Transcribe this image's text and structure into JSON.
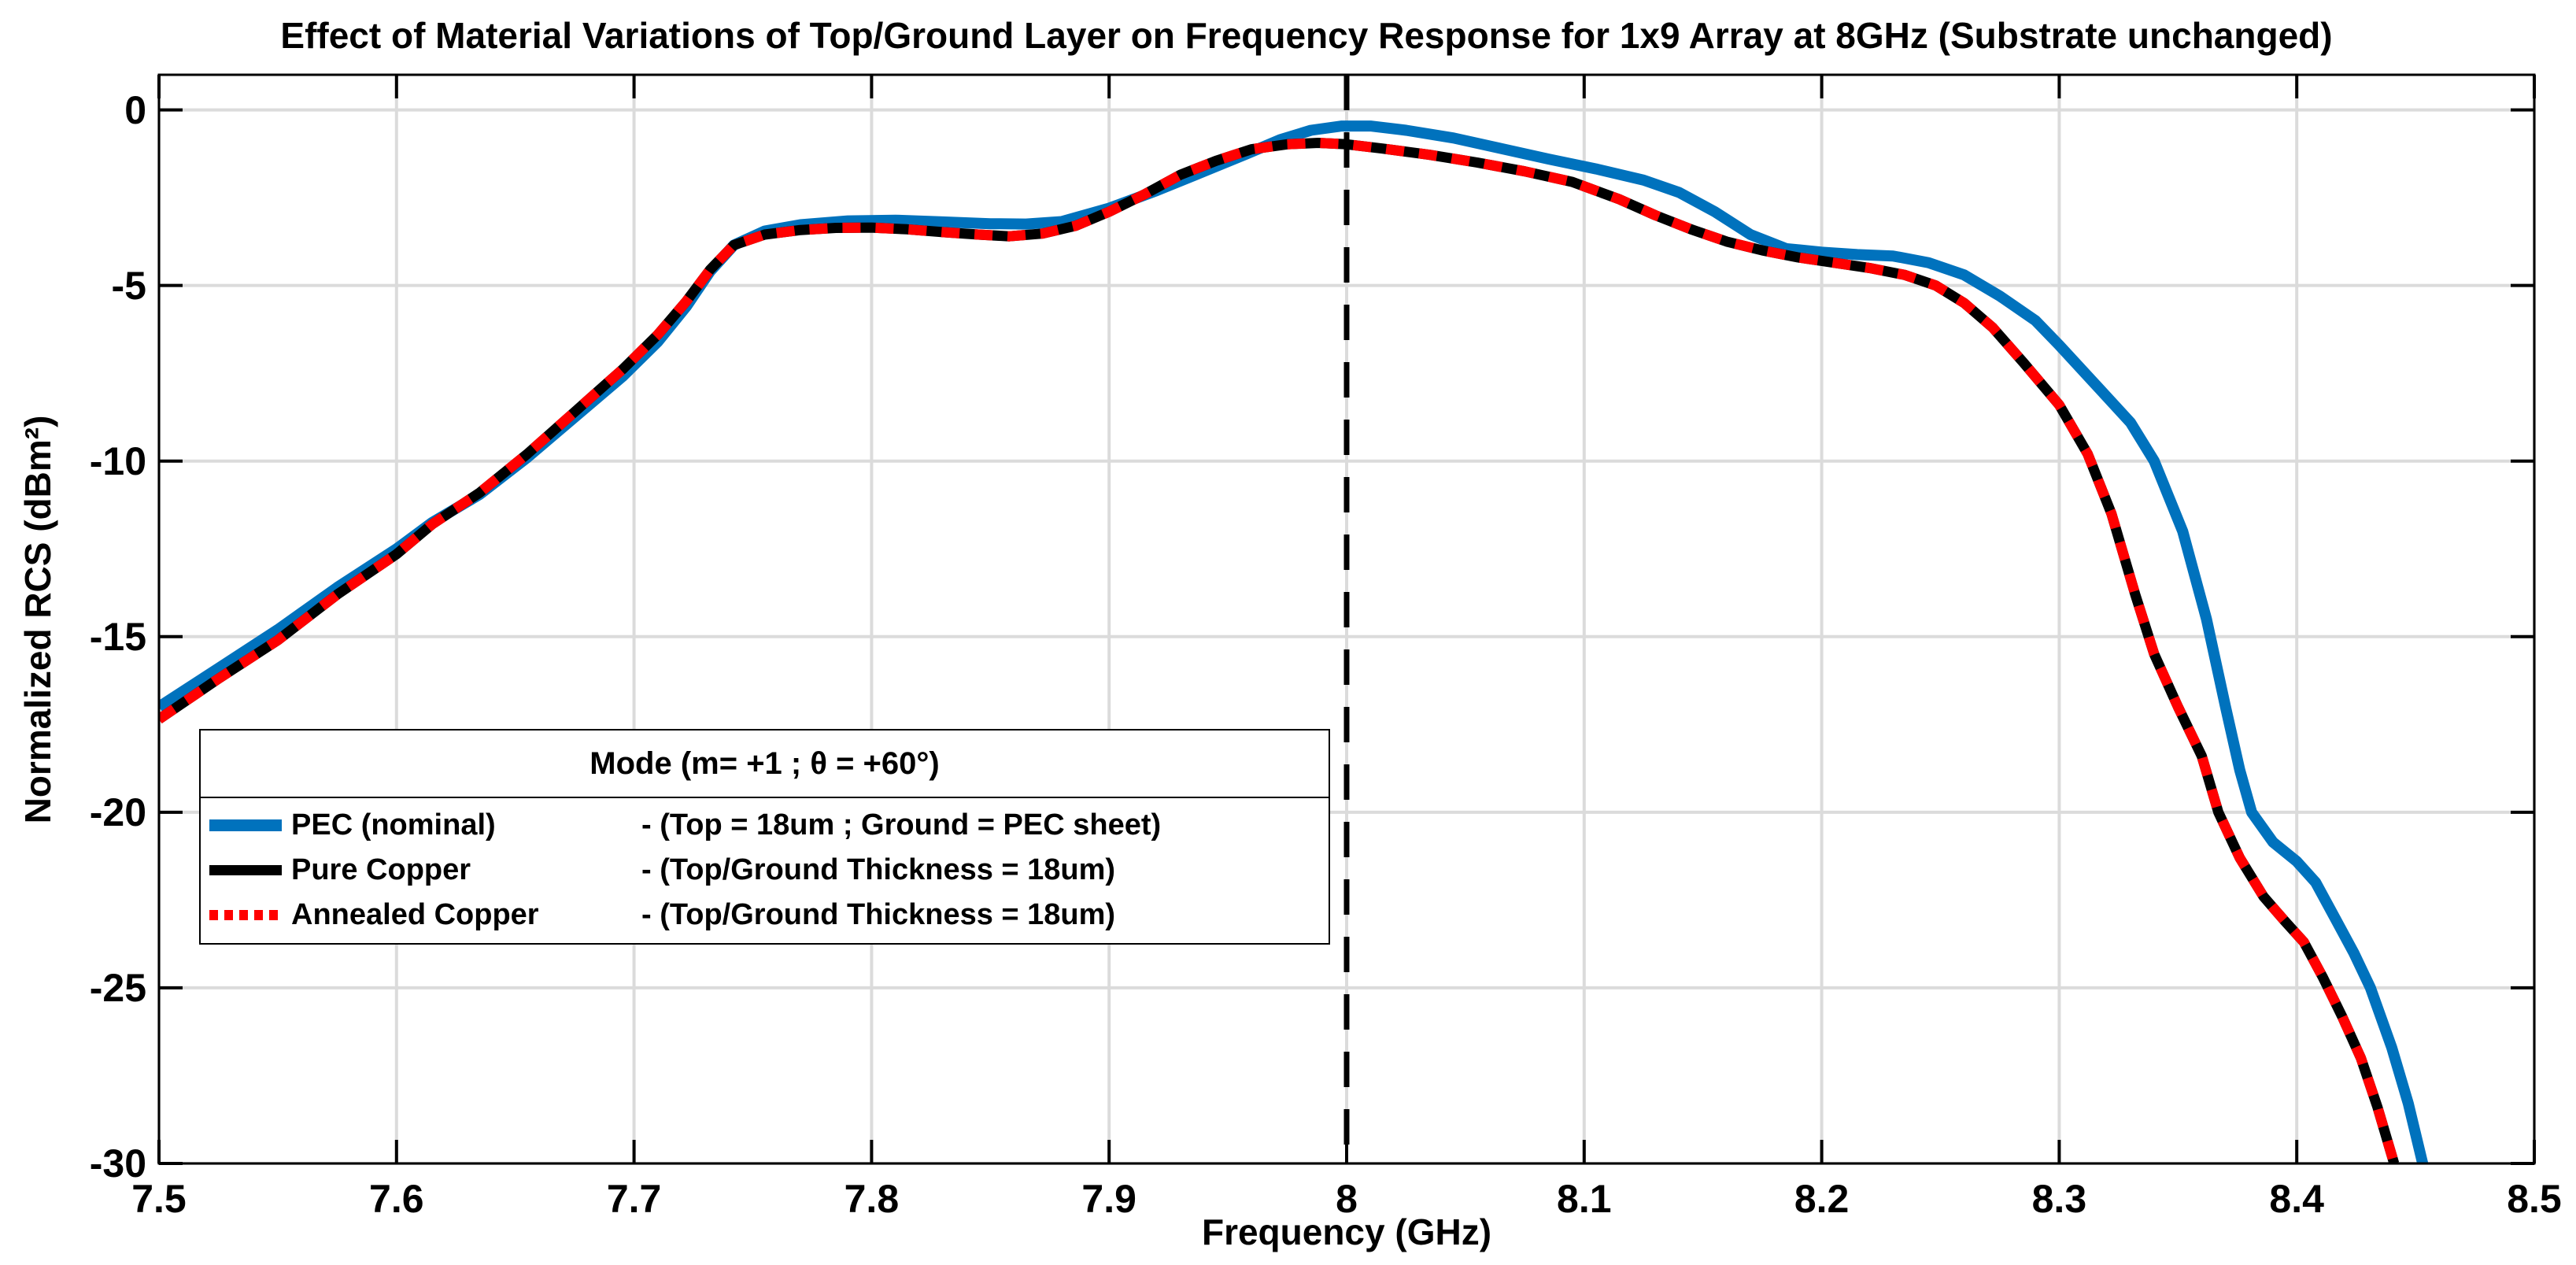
{
  "chart_data": {
    "type": "line",
    "title": "Effect of Material Variations of Top/Ground Layer on Frequency Response for 1x9 Array at 8GHz (Substrate unchanged)",
    "xlabel": "Frequency (GHz)",
    "ylabel": "Normalized RCS (dBm²)",
    "xlim": [
      7.5,
      8.5
    ],
    "ylim": [
      -30,
      1
    ],
    "grid": true,
    "x_ticks": [
      7.5,
      7.6,
      7.7,
      7.8,
      7.9,
      8,
      8.1,
      8.2,
      8.3,
      8.4,
      8.5
    ],
    "x_tick_labels": [
      "7.5",
      "7.6",
      "7.7",
      "7.8",
      "7.9",
      "8",
      "8.1",
      "8.2",
      "8.3",
      "8.4",
      "8.5"
    ],
    "y_ticks": [
      0,
      -5,
      -10,
      -15,
      -20,
      -25,
      -30
    ],
    "y_tick_labels": [
      "0",
      "-5",
      "-10",
      "-15",
      "-20",
      "-25",
      "-30"
    ],
    "marker_line": {
      "x": 8,
      "color": "#000000",
      "style": "dashed"
    },
    "colors": {
      "background": "#FFFFFF",
      "grid": "#DBDBDB",
      "axis": "#000000",
      "pec_blue": "#0072BD",
      "copper_black": "#000000",
      "annealed_red": "#FF0000"
    },
    "series": [
      {
        "name": "PEC (nominal)",
        "color": "#0072BD",
        "style": "solid",
        "width": 14,
        "points": [
          [
            7.5,
            -17.0
          ],
          [
            7.525,
            -15.9
          ],
          [
            7.55,
            -14.8
          ],
          [
            7.575,
            -13.6
          ],
          [
            7.6,
            -12.5
          ],
          [
            7.615,
            -11.75
          ],
          [
            7.635,
            -10.95
          ],
          [
            7.655,
            -9.9
          ],
          [
            7.675,
            -8.75
          ],
          [
            7.695,
            -7.6
          ],
          [
            7.71,
            -6.6
          ],
          [
            7.722,
            -5.6
          ],
          [
            7.732,
            -4.6
          ],
          [
            7.742,
            -3.85
          ],
          [
            7.755,
            -3.45
          ],
          [
            7.77,
            -3.27
          ],
          [
            7.79,
            -3.16
          ],
          [
            7.81,
            -3.14
          ],
          [
            7.83,
            -3.19
          ],
          [
            7.85,
            -3.24
          ],
          [
            7.865,
            -3.25
          ],
          [
            7.88,
            -3.18
          ],
          [
            7.9,
            -2.8
          ],
          [
            7.92,
            -2.3
          ],
          [
            7.94,
            -1.75
          ],
          [
            7.958,
            -1.25
          ],
          [
            7.972,
            -0.85
          ],
          [
            7.985,
            -0.58
          ],
          [
            7.998,
            -0.46
          ],
          [
            8.01,
            -0.46
          ],
          [
            8.025,
            -0.58
          ],
          [
            8.045,
            -0.8
          ],
          [
            8.065,
            -1.1
          ],
          [
            8.085,
            -1.4
          ],
          [
            8.105,
            -1.68
          ],
          [
            8.125,
            -2.0
          ],
          [
            8.14,
            -2.35
          ],
          [
            8.155,
            -2.9
          ],
          [
            8.17,
            -3.55
          ],
          [
            8.185,
            -3.95
          ],
          [
            8.2,
            -4.05
          ],
          [
            8.215,
            -4.12
          ],
          [
            8.23,
            -4.16
          ],
          [
            8.245,
            -4.35
          ],
          [
            8.26,
            -4.7
          ],
          [
            8.275,
            -5.3
          ],
          [
            8.29,
            -6.0
          ],
          [
            8.3,
            -6.7
          ],
          [
            8.315,
            -7.8
          ],
          [
            8.33,
            -8.9
          ],
          [
            8.34,
            -10.0
          ],
          [
            8.352,
            -12.0
          ],
          [
            8.362,
            -14.5
          ],
          [
            8.37,
            -17.0
          ],
          [
            8.376,
            -18.8
          ],
          [
            8.381,
            -20.0
          ],
          [
            8.39,
            -20.85
          ],
          [
            8.4,
            -21.4
          ],
          [
            8.408,
            -22.0
          ],
          [
            8.416,
            -23.0
          ],
          [
            8.424,
            -24.0
          ],
          [
            8.431,
            -25.0
          ],
          [
            8.44,
            -26.7
          ],
          [
            8.447,
            -28.3
          ],
          [
            8.453,
            -30.0
          ]
        ]
      },
      {
        "name": "Pure Copper",
        "color": "#000000",
        "style": "solid",
        "width": 13,
        "points": [
          [
            7.5,
            -17.35
          ],
          [
            7.525,
            -16.2
          ],
          [
            7.55,
            -15.1
          ],
          [
            7.575,
            -13.8
          ],
          [
            7.6,
            -12.65
          ],
          [
            7.615,
            -11.8
          ],
          [
            7.635,
            -10.9
          ],
          [
            7.655,
            -9.8
          ],
          [
            7.675,
            -8.6
          ],
          [
            7.695,
            -7.4
          ],
          [
            7.71,
            -6.4
          ],
          [
            7.722,
            -5.45
          ],
          [
            7.732,
            -4.55
          ],
          [
            7.742,
            -3.85
          ],
          [
            7.755,
            -3.55
          ],
          [
            7.77,
            -3.42
          ],
          [
            7.785,
            -3.36
          ],
          [
            7.8,
            -3.35
          ],
          [
            7.815,
            -3.4
          ],
          [
            7.83,
            -3.48
          ],
          [
            7.845,
            -3.55
          ],
          [
            7.858,
            -3.6
          ],
          [
            7.872,
            -3.52
          ],
          [
            7.886,
            -3.3
          ],
          [
            7.9,
            -2.9
          ],
          [
            7.915,
            -2.4
          ],
          [
            7.93,
            -1.85
          ],
          [
            7.945,
            -1.45
          ],
          [
            7.96,
            -1.12
          ],
          [
            7.975,
            -0.98
          ],
          [
            7.988,
            -0.94
          ],
          [
            8.0,
            -0.98
          ],
          [
            8.015,
            -1.1
          ],
          [
            8.035,
            -1.28
          ],
          [
            8.055,
            -1.5
          ],
          [
            8.075,
            -1.75
          ],
          [
            8.095,
            -2.05
          ],
          [
            8.115,
            -2.55
          ],
          [
            8.13,
            -3.0
          ],
          [
            8.145,
            -3.4
          ],
          [
            8.16,
            -3.75
          ],
          [
            8.175,
            -4.0
          ],
          [
            8.19,
            -4.2
          ],
          [
            8.205,
            -4.35
          ],
          [
            8.22,
            -4.5
          ],
          [
            8.235,
            -4.7
          ],
          [
            8.248,
            -5.0
          ],
          [
            8.26,
            -5.5
          ],
          [
            8.272,
            -6.2
          ],
          [
            8.285,
            -7.2
          ],
          [
            8.3,
            -8.4
          ],
          [
            8.312,
            -9.8
          ],
          [
            8.322,
            -11.5
          ],
          [
            8.332,
            -13.8
          ],
          [
            8.34,
            -15.5
          ],
          [
            8.35,
            -17.0
          ],
          [
            8.36,
            -18.4
          ],
          [
            8.367,
            -20.0
          ],
          [
            8.376,
            -21.3
          ],
          [
            8.386,
            -22.4
          ],
          [
            8.395,
            -23.1
          ],
          [
            8.403,
            -23.7
          ],
          [
            8.411,
            -24.7
          ],
          [
            8.419,
            -25.8
          ],
          [
            8.427,
            -27.0
          ],
          [
            8.434,
            -28.4
          ],
          [
            8.441,
            -30.0
          ]
        ]
      },
      {
        "name": "Annealed Copper",
        "color": "#FF0000",
        "style": "dotted",
        "width": 13,
        "points_same_as": "Pure Copper"
      }
    ],
    "legend": {
      "title": "Mode (m= +1 ; θ = +60°)",
      "position": "west",
      "entries": [
        {
          "swatch": "blue-solid",
          "label": "PEC (nominal)",
          "desc": "- (Top = 18um ; Ground = PEC sheet)"
        },
        {
          "swatch": "black-solid",
          "label": "Pure Copper",
          "desc": "- (Top/Ground Thickness = 18um)"
        },
        {
          "swatch": "red-dotted",
          "label": "Annealed Copper",
          "desc": "- (Top/Ground Thickness = 18um)"
        }
      ]
    }
  }
}
